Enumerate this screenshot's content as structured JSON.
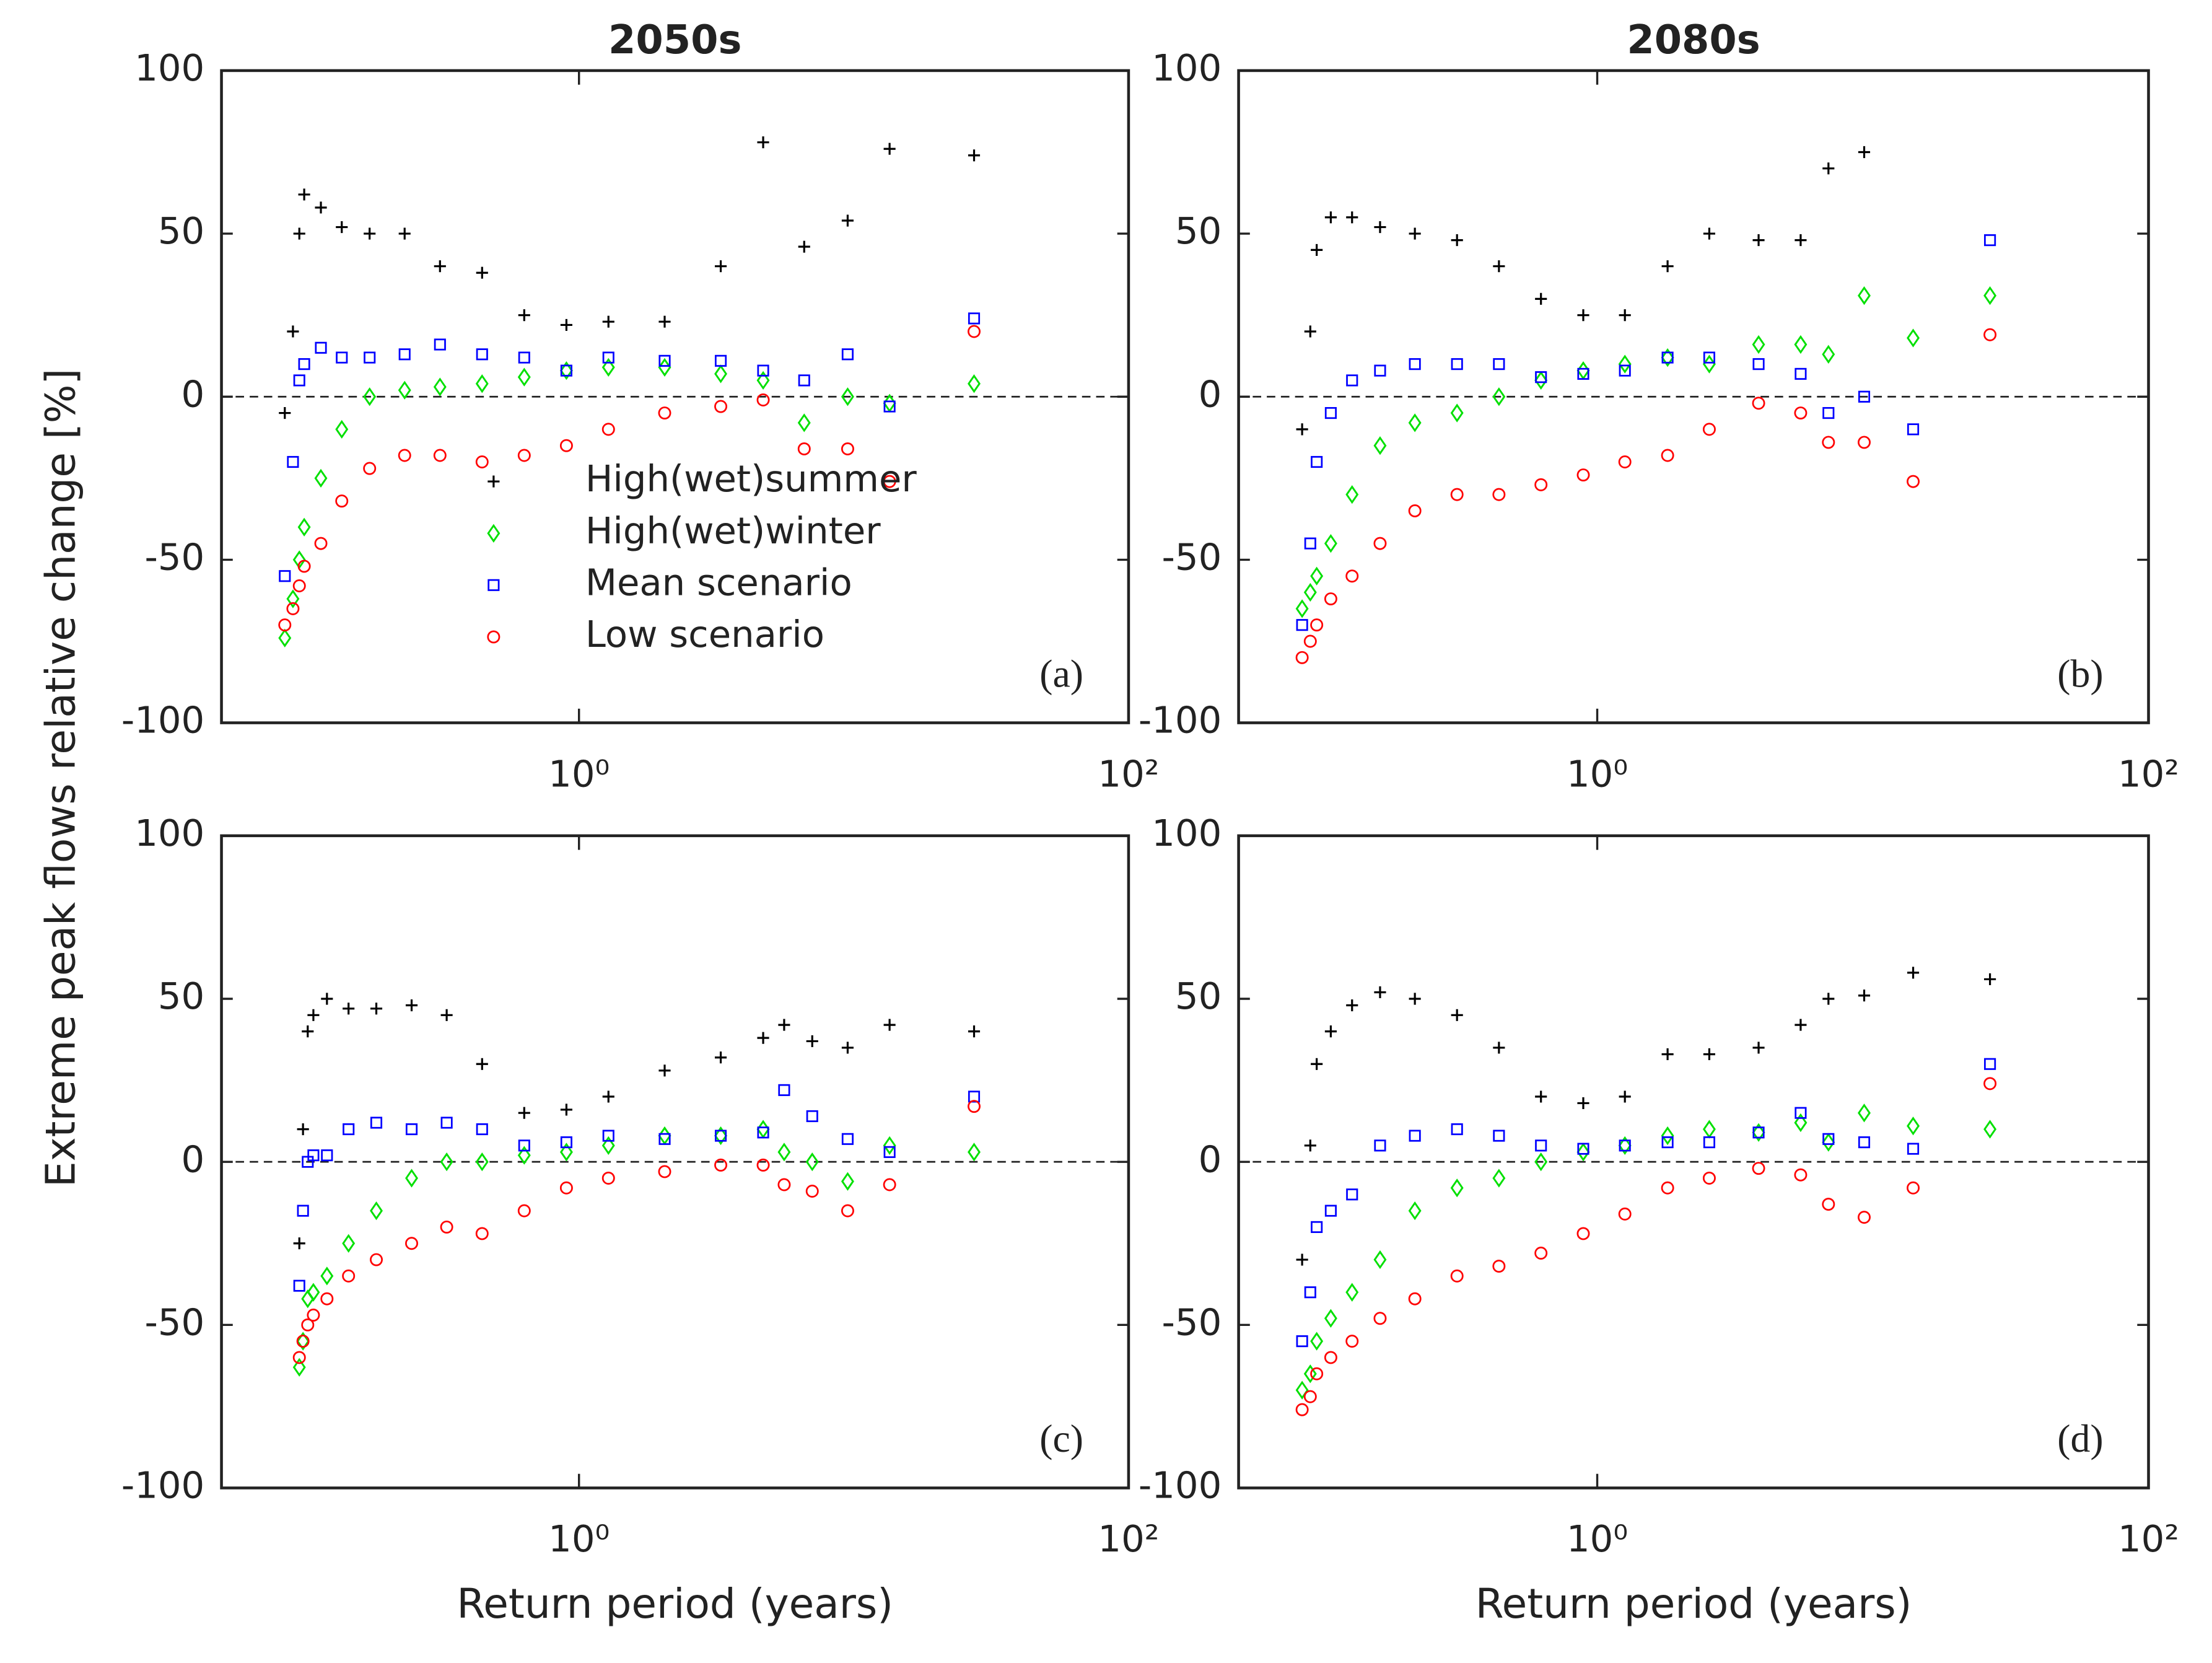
{
  "chart_data": [
    {
      "type": "scatter",
      "title": "2050s",
      "panel_label": "(a)",
      "ylabel": "Extreme peak flows relative change [%]",
      "xscale": "log",
      "xlim": [
        0.05,
        100
      ],
      "ylim": [
        -100,
        100
      ],
      "xticks": [
        {
          "value": 1,
          "label": "10⁰"
        },
        {
          "value": 100,
          "label": "10²"
        }
      ],
      "yticks": [
        -100,
        -50,
        0,
        50,
        100
      ],
      "hline": 0,
      "legend": "center",
      "x": [
        0.085,
        0.091,
        0.096,
        0.1,
        0.115,
        0.137,
        0.173,
        0.232,
        0.312,
        0.444,
        0.632,
        0.9,
        1.28,
        2.05,
        3.28,
        4.68,
        6.6,
        9.5,
        13.5,
        27.4
      ],
      "series": [
        {
          "name": "High(wet)summer",
          "color": "#000000",
          "marker": "plus",
          "values": [
            -5,
            20,
            50,
            62,
            58,
            52,
            50,
            50,
            40,
            38,
            25,
            22,
            23,
            23,
            40,
            78,
            46,
            54,
            76,
            74
          ]
        },
        {
          "name": "High(wet)winter",
          "color": "#00e000",
          "marker": "diamond",
          "values": [
            -74,
            -62,
            -50,
            -40,
            -25,
            -10,
            0,
            2,
            3,
            4,
            6,
            8,
            9,
            9,
            7,
            5,
            -8,
            0,
            -2,
            4
          ]
        },
        {
          "name": "Mean scenario",
          "color": "#0000ff",
          "marker": "square",
          "values": [
            -55,
            -20,
            5,
            10,
            15,
            12,
            12,
            13,
            16,
            13,
            12,
            8,
            12,
            11,
            11,
            8,
            5,
            13,
            -3,
            24
          ]
        },
        {
          "name": "Low scenario",
          "color": "#ff0000",
          "marker": "circle",
          "values": [
            -70,
            -65,
            -58,
            -52,
            -45,
            -32,
            -22,
            -18,
            -18,
            -20,
            -18,
            -15,
            -10,
            -5,
            -3,
            -1,
            -16,
            -16,
            -26,
            20
          ]
        }
      ]
    },
    {
      "type": "scatter",
      "title": "2080s",
      "panel_label": "(b)",
      "xscale": "log",
      "xlim": [
        0.05,
        100
      ],
      "ylim": [
        -100,
        100
      ],
      "xticks": [
        {
          "value": 1,
          "label": "10⁰"
        },
        {
          "value": 100,
          "label": "10²"
        }
      ],
      "yticks": [
        -100,
        -50,
        0,
        50,
        100
      ],
      "hline": 0,
      "x": [
        0.085,
        0.091,
        0.096,
        0.108,
        0.129,
        0.163,
        0.218,
        0.31,
        0.44,
        0.625,
        0.89,
        1.26,
        1.8,
        2.55,
        3.85,
        5.47,
        6.9,
        9.3,
        14,
        26.6
      ],
      "series": [
        {
          "color": "#000000",
          "marker": "plus",
          "values": [
            -10,
            20,
            45,
            55,
            55,
            52,
            50,
            48,
            40,
            30,
            25,
            25,
            40,
            50,
            48,
            48,
            70,
            75,
            null,
            null
          ]
        },
        {
          "color": "#00e000",
          "marker": "diamond",
          "values": [
            -65,
            -60,
            -55,
            -45,
            -30,
            -15,
            -8,
            -5,
            0,
            5,
            8,
            10,
            12,
            10,
            16,
            16,
            13,
            31,
            18,
            31
          ]
        },
        {
          "color": "#0000ff",
          "marker": "square",
          "values": [
            -70,
            -45,
            -20,
            -5,
            5,
            8,
            10,
            10,
            10,
            6,
            7,
            8,
            12,
            12,
            10,
            7,
            -5,
            0,
            -10,
            48
          ]
        },
        {
          "color": "#ff0000",
          "marker": "circle",
          "values": [
            -80,
            -75,
            -70,
            -62,
            -55,
            -45,
            -35,
            -30,
            -30,
            -27,
            -24,
            -20,
            -18,
            -10,
            -2,
            -5,
            -14,
            -14,
            -26,
            19
          ]
        }
      ]
    },
    {
      "type": "scatter",
      "panel_label": "(c)",
      "xlabel": "Return period (years)",
      "xscale": "log",
      "xlim": [
        0.05,
        100
      ],
      "ylim": [
        -100,
        100
      ],
      "xticks": [
        {
          "value": 1,
          "label": "10⁰"
        },
        {
          "value": 100,
          "label": "10²"
        }
      ],
      "yticks": [
        -100,
        -50,
        0,
        50,
        100
      ],
      "hline": 0,
      "x": [
        0.096,
        0.099,
        0.103,
        0.108,
        0.121,
        0.145,
        0.183,
        0.246,
        0.33,
        0.444,
        0.632,
        0.9,
        1.28,
        2.05,
        3.28,
        4.68,
        5.58,
        7.06,
        9.5,
        13.5,
        27.4
      ],
      "series": [
        {
          "color": "#000000",
          "marker": "plus",
          "values": [
            -25,
            10,
            40,
            45,
            50,
            47,
            47,
            48,
            45,
            30,
            15,
            16,
            20,
            28,
            32,
            38,
            42,
            37,
            35,
            42,
            40
          ]
        },
        {
          "color": "#00e000",
          "marker": "diamond",
          "values": [
            -63,
            -55,
            -42,
            -40,
            -35,
            -25,
            -15,
            -5,
            0,
            0,
            2,
            3,
            5,
            8,
            8,
            10,
            3,
            0,
            -6,
            5,
            3
          ]
        },
        {
          "color": "#0000ff",
          "marker": "square",
          "values": [
            -38,
            -15,
            0,
            2,
            2,
            10,
            12,
            10,
            12,
            10,
            5,
            6,
            8,
            7,
            8,
            9,
            22,
            14,
            7,
            3,
            20
          ]
        },
        {
          "color": "#ff0000",
          "marker": "circle",
          "values": [
            -60,
            -55,
            -50,
            -47,
            -42,
            -35,
            -30,
            -25,
            -20,
            -22,
            -15,
            -8,
            -5,
            -3,
            -1,
            -1,
            -7,
            -9,
            -15,
            -7,
            17
          ]
        }
      ]
    },
    {
      "type": "scatter",
      "panel_label": "(d)",
      "xlabel": "Return period (years)",
      "xscale": "log",
      "xlim": [
        0.05,
        100
      ],
      "ylim": [
        -100,
        100
      ],
      "xticks": [
        {
          "value": 1,
          "label": "10⁰"
        },
        {
          "value": 100,
          "label": "10²"
        }
      ],
      "yticks": [
        -100,
        -50,
        0,
        50,
        100
      ],
      "hline": 0,
      "x": [
        0.085,
        0.091,
        0.096,
        0.108,
        0.129,
        0.163,
        0.218,
        0.31,
        0.44,
        0.625,
        0.89,
        1.26,
        1.8,
        2.55,
        3.85,
        5.47,
        6.9,
        9.3,
        14,
        26.6
      ],
      "series": [
        {
          "color": "#000000",
          "marker": "plus",
          "values": [
            -30,
            5,
            30,
            40,
            48,
            52,
            50,
            45,
            35,
            20,
            18,
            20,
            33,
            33,
            35,
            42,
            50,
            51,
            58,
            56
          ]
        },
        {
          "color": "#00e000",
          "marker": "diamond",
          "values": [
            -70,
            -65,
            -55,
            -48,
            -40,
            -30,
            -15,
            -8,
            -5,
            0,
            3,
            5,
            8,
            10,
            9,
            12,
            6,
            15,
            11,
            10
          ]
        },
        {
          "color": "#0000ff",
          "marker": "square",
          "values": [
            -55,
            -40,
            -20,
            -15,
            -10,
            5,
            8,
            10,
            8,
            5,
            4,
            5,
            6,
            6,
            9,
            15,
            7,
            6,
            4,
            30
          ]
        },
        {
          "color": "#ff0000",
          "marker": "circle",
          "values": [
            -76,
            -72,
            -65,
            -60,
            -55,
            -48,
            -42,
            -35,
            -32,
            -28,
            -22,
            -16,
            -8,
            -5,
            -2,
            -4,
            -13,
            -17,
            -8,
            24
          ]
        }
      ]
    }
  ]
}
